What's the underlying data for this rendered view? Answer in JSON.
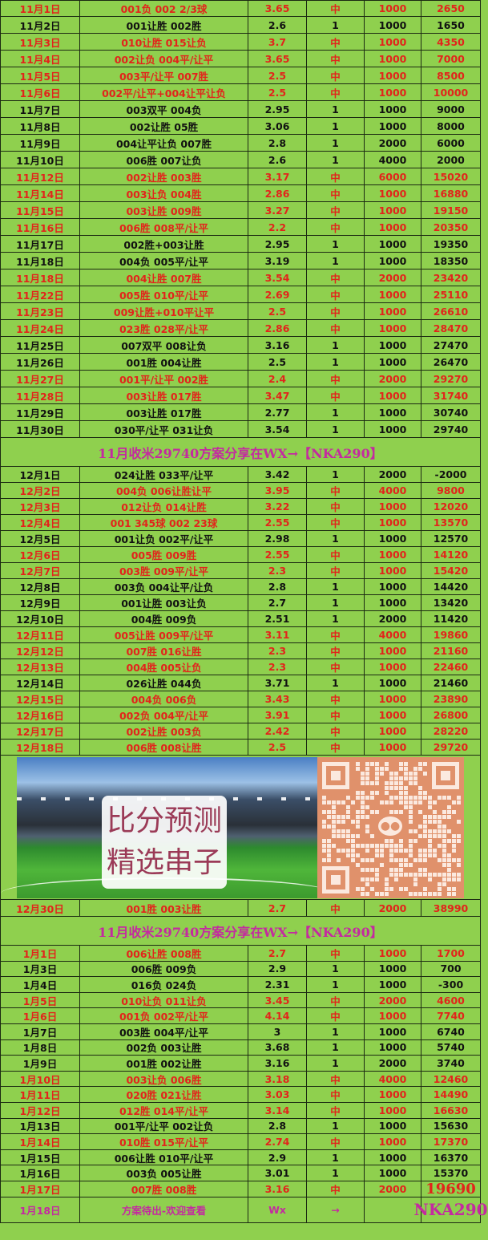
{
  "colors": {
    "background": "#8fd04e",
    "hit": "#e2241b",
    "normal": "#111111",
    "banner": "#c42aa0",
    "qr": "#e0916b"
  },
  "november": [
    [
      "11月1日",
      "001负 002 2/3球",
      "3.65",
      "中",
      "1000",
      "2650"
    ],
    [
      "11月2日",
      "001让胜 002胜",
      "2.6",
      "1",
      "1000",
      "1650"
    ],
    [
      "11月3日",
      "010让胜 015让负",
      "3.7",
      "中",
      "1000",
      "4350"
    ],
    [
      "11月4日",
      "002让负 004平/让平",
      "3.65",
      "中",
      "1000",
      "7000"
    ],
    [
      "11月5日",
      "003平/让平 007胜",
      "2.5",
      "中",
      "1000",
      "8500"
    ],
    [
      "11月6日",
      "002平/让平+004让平让负",
      "2.5",
      "中",
      "1000",
      "10000"
    ],
    [
      "11月7日",
      "003双平 004负",
      "2.95",
      "1",
      "1000",
      "9000"
    ],
    [
      "11月8日",
      "002让胜 05胜",
      "3.06",
      "1",
      "1000",
      "8000"
    ],
    [
      "11月9日",
      "004让平让负 007胜",
      "2.8",
      "1",
      "2000",
      "6000"
    ],
    [
      "11月10日",
      "006胜 007让负",
      "2.6",
      "1",
      "4000",
      "2000"
    ],
    [
      "11月12日",
      "002让胜 003胜",
      "3.17",
      "中",
      "6000",
      "15020"
    ],
    [
      "11月14日",
      "003让负 004胜",
      "2.86",
      "中",
      "1000",
      "16880"
    ],
    [
      "11月15日",
      "003让胜 009胜",
      "3.27",
      "中",
      "1000",
      "19150"
    ],
    [
      "11月16日",
      "006胜 008平/让平",
      "2.2",
      "中",
      "1000",
      "20350"
    ],
    [
      "11月17日",
      "002胜+003让胜",
      "2.95",
      "1",
      "1000",
      "19350"
    ],
    [
      "11月18日",
      "004负 005平/让平",
      "3.19",
      "1",
      "1000",
      "18350"
    ],
    [
      "11月18日",
      "004让胜 007胜",
      "3.54",
      "中",
      "2000",
      "23420"
    ],
    [
      "11月22日",
      "005胜 010平/让平",
      "2.69",
      "中",
      "1000",
      "25110"
    ],
    [
      "11月23日",
      "009让胜+010平让平",
      "2.5",
      "中",
      "1000",
      "26610"
    ],
    [
      "11月24日",
      "023胜 028平/让平",
      "2.86",
      "中",
      "1000",
      "28470"
    ],
    [
      "11月25日",
      "007双平 008让负",
      "3.16",
      "1",
      "1000",
      "27470"
    ],
    [
      "11月26日",
      "001胜 004让胜",
      "2.5",
      "1",
      "1000",
      "26470"
    ],
    [
      "11月27日",
      "001平/让平 002胜",
      "2.4",
      "中",
      "2000",
      "29270"
    ],
    [
      "11月28日",
      "003让胜 017胜",
      "3.47",
      "中",
      "1000",
      "31740"
    ],
    [
      "11月29日",
      "003让胜 017胜",
      "2.77",
      "1",
      "1000",
      "30740"
    ],
    [
      "11月30日",
      "030平/让平 031让负",
      "3.54",
      "1",
      "1000",
      "29740"
    ]
  ],
  "banner_1": "11月收米29740方案分享在WX→【NKA290】",
  "december": [
    [
      "12月1日",
      "024让胜 033平/让平",
      "3.42",
      "1",
      "2000",
      "-2000"
    ],
    [
      "12月2日",
      "004负 006让胜让平",
      "3.95",
      "中",
      "4000",
      "9800"
    ],
    [
      "12月3日",
      "012让负 014让胜",
      "3.22",
      "中",
      "1000",
      "12020"
    ],
    [
      "12月4日",
      "001 345球 002 23球",
      "2.55",
      "中",
      "1000",
      "13570"
    ],
    [
      "12月5日",
      "001让负 002平/让平",
      "2.98",
      "1",
      "1000",
      "12570"
    ],
    [
      "12月6日",
      "005胜 009胜",
      "2.55",
      "中",
      "1000",
      "14120"
    ],
    [
      "12月7日",
      "003胜 009平/让平",
      "2.3",
      "中",
      "1000",
      "15420"
    ],
    [
      "12月8日",
      "003负 004让平/让负",
      "2.8",
      "1",
      "1000",
      "14420"
    ],
    [
      "12月9日",
      "001让胜 003让负",
      "2.7",
      "1",
      "1000",
      "13420"
    ],
    [
      "12月10日",
      "004胜 009负",
      "2.51",
      "1",
      "2000",
      "11420"
    ],
    [
      "12月11日",
      "005让胜 009平/让平",
      "3.11",
      "中",
      "4000",
      "19860"
    ],
    [
      "12月12日",
      "007胜 016让胜",
      "2.3",
      "中",
      "1000",
      "21160"
    ],
    [
      "12月13日",
      "004胜 005让负",
      "2.3",
      "中",
      "1000",
      "22460"
    ],
    [
      "12月14日",
      "026让胜 044负",
      "3.71",
      "1",
      "1000",
      "21460"
    ],
    [
      "12月15日",
      "004负 006负",
      "3.43",
      "中",
      "1000",
      "23890"
    ],
    [
      "12月16日",
      "002负 004平/让平",
      "3.91",
      "中",
      "1000",
      "26800"
    ],
    [
      "12月17日",
      "002让胜 003负",
      "2.42",
      "中",
      "1000",
      "28220"
    ],
    [
      "12月18日",
      "006胜 008让胜",
      "2.5",
      "中",
      "1000",
      "29720"
    ]
  ],
  "promo": {
    "line1": "比分预测",
    "line2": "精选串子",
    "qr_icon": "wechat-icon"
  },
  "december_late": [
    [
      "12月30日",
      "001胜 003让胜",
      "2.7",
      "中",
      "2000",
      "38990"
    ]
  ],
  "banner_2": "11月收米29740方案分享在WX→【NKA290】",
  "january": [
    [
      "1月1日",
      "006让胜 008胜",
      "2.7",
      "中",
      "1000",
      "1700"
    ],
    [
      "1月3日",
      "006胜 009负",
      "2.9",
      "1",
      "1000",
      "700"
    ],
    [
      "1月4日",
      "016负 024负",
      "2.31",
      "1",
      "1000",
      "-300"
    ],
    [
      "1月5日",
      "010让负 011让负",
      "3.45",
      "中",
      "2000",
      "4600"
    ],
    [
      "1月6日",
      "001负 002平/让平",
      "4.14",
      "中",
      "1000",
      "7740"
    ],
    [
      "1月7日",
      "003胜 004平/让平",
      "3",
      "1",
      "1000",
      "6740"
    ],
    [
      "1月8日",
      "002负 003让胜",
      "3.68",
      "1",
      "1000",
      "5740"
    ],
    [
      "1月9日",
      "001胜 002让胜",
      "3.16",
      "1",
      "2000",
      "3740"
    ],
    [
      "1月10日",
      "003让负 006胜",
      "3.18",
      "中",
      "4000",
      "12460"
    ],
    [
      "1月11日",
      "020胜 021让胜",
      "3.03",
      "中",
      "1000",
      "14490"
    ],
    [
      "1月12日",
      "012胜 014平/让平",
      "3.14",
      "中",
      "1000",
      "16630"
    ],
    [
      "1月13日",
      "001平/让平 002让负",
      "2.8",
      "1",
      "1000",
      "15630"
    ],
    [
      "1月14日",
      "010胜 015平/让平",
      "2.74",
      "中",
      "1000",
      "17370"
    ],
    [
      "1月15日",
      "006让胜 010平/让平",
      "2.9",
      "1",
      "1000",
      "16370"
    ],
    [
      "1月16日",
      "003负 005让胜",
      "3.01",
      "1",
      "1000",
      "15370"
    ],
    [
      "1月17日",
      "007胜 008胜",
      "3.16",
      "中",
      "2000",
      "19690"
    ]
  ],
  "final_row": {
    "date": "1月18日",
    "bet": "方案待出-欢迎查看",
    "odds": "Wx",
    "result": "→",
    "stake": "",
    "total": "NKA290"
  }
}
